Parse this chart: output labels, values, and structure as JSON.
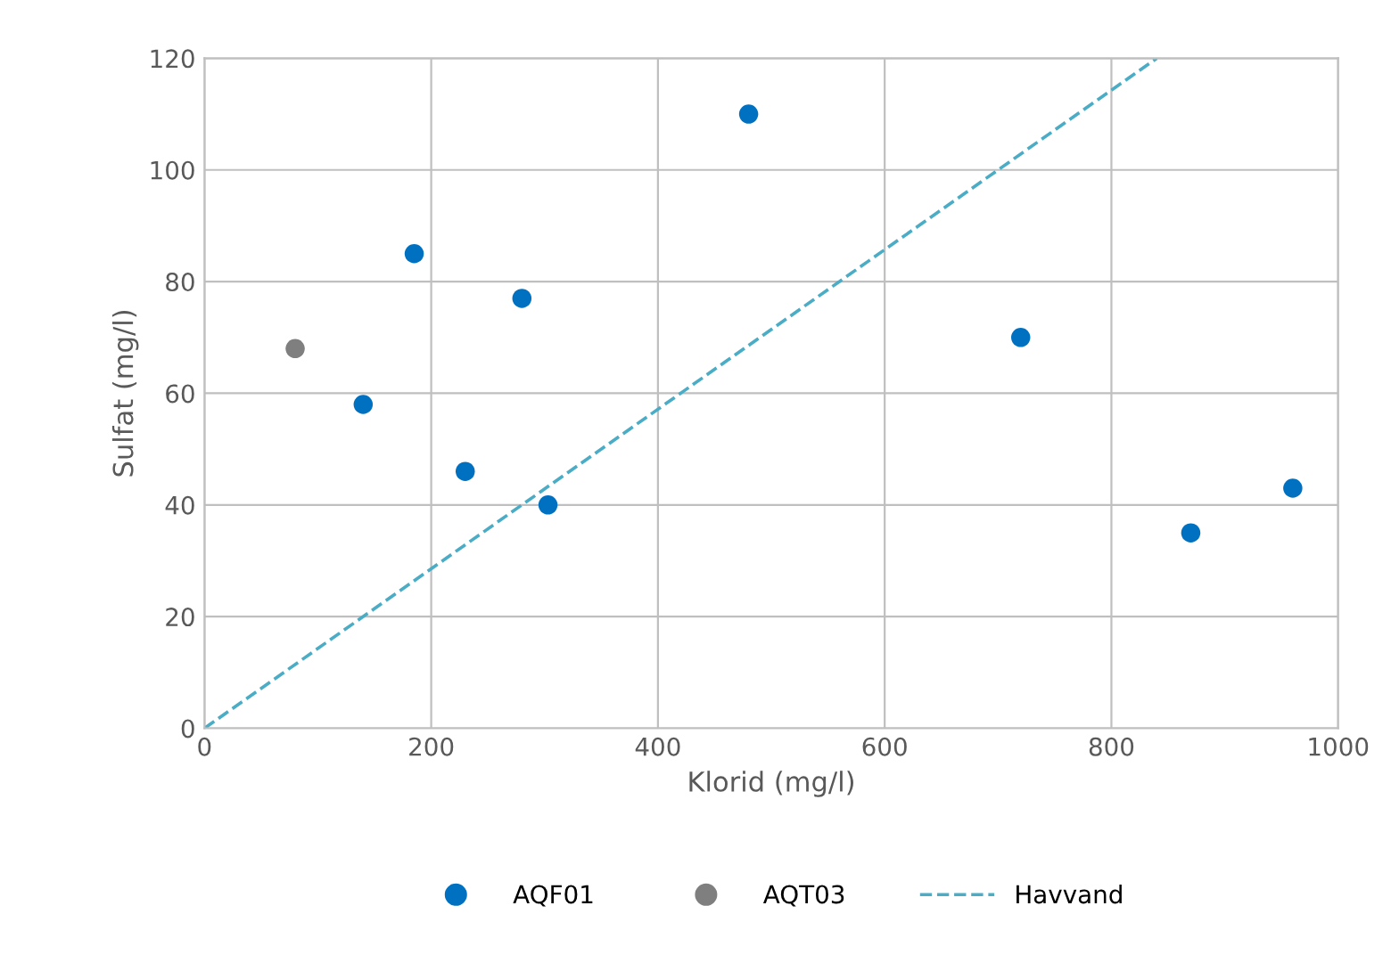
{
  "chart_data": {
    "type": "scatter",
    "xlabel": "Klorid (mg/l)",
    "ylabel": "Sulfat (mg/l)",
    "xlim": [
      0,
      1000
    ],
    "xticks": [
      0,
      200,
      400,
      600,
      800,
      1000
    ],
    "ylim": [
      0,
      120
    ],
    "yticks": [
      0,
      20,
      40,
      60,
      80,
      100,
      120
    ],
    "grid": true,
    "legend": "bottom",
    "series": [
      {
        "name": "AQF01",
        "color": "#0070c0",
        "marker": "circle",
        "x": [
          140,
          185,
          230,
          280,
          303,
          480,
          720,
          870,
          960
        ],
        "values": [
          58,
          85,
          46,
          77,
          40,
          110,
          70,
          35,
          43
        ]
      },
      {
        "name": "AQT03",
        "color": "#7f7f7f",
        "marker": "circle",
        "x": [
          80
        ],
        "values": [
          68
        ]
      },
      {
        "name": "Havvand",
        "color": "#4bacc6",
        "type": "line",
        "line_style": "dashed",
        "x": [
          0,
          840
        ],
        "values": [
          0,
          120
        ]
      }
    ]
  }
}
